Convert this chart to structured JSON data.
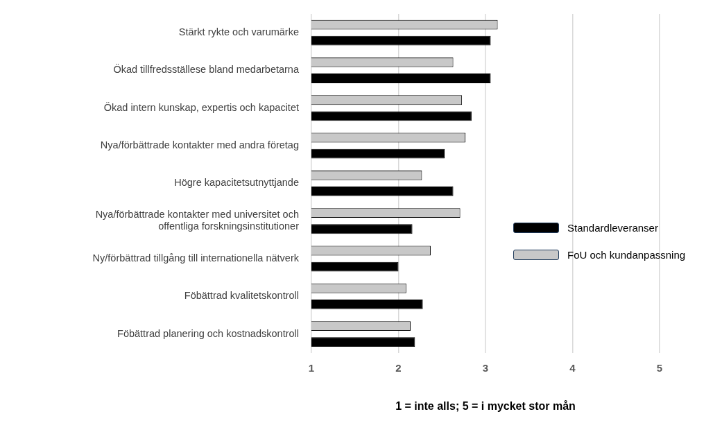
{
  "chart_data": {
    "type": "bar",
    "orientation": "horizontal",
    "xlabel": "1 = inte alls; 5 = i mycket stor mån",
    "categories": [
      "Stärkt rykte och varumärke",
      "Ökad tillfredsställese bland medarbetarna",
      "Ökad intern kunskap, expertis och kapacitet",
      "Nya/förbättrade kontakter med andra företag",
      "Högre kapacitetsutnyttjande",
      "Nya/förbättrade kontakter med universitet och offentliga forskningsinstitutioner",
      "Ny/förbättrad tillgång till internationella nätverk",
      "Föbättrad kvalitetskontroll",
      "Föbättrad planering och kostnadskontroll"
    ],
    "series": [
      {
        "name": "FoU och kundanpassning",
        "color": "#c8c8c8",
        "values": [
          3.14,
          2.63,
          2.73,
          2.77,
          2.27,
          2.71,
          2.37,
          2.09,
          2.14
        ]
      },
      {
        "name": "Standardleveranser",
        "color": "#000000",
        "values": [
          3.06,
          3.06,
          2.84,
          2.53,
          2.63,
          2.16,
          2.0,
          2.28,
          2.19
        ]
      }
    ],
    "xlim": [
      1,
      5
    ],
    "xticks": [
      1,
      2,
      3,
      4,
      5
    ],
    "grid": "x",
    "legend": "right"
  }
}
